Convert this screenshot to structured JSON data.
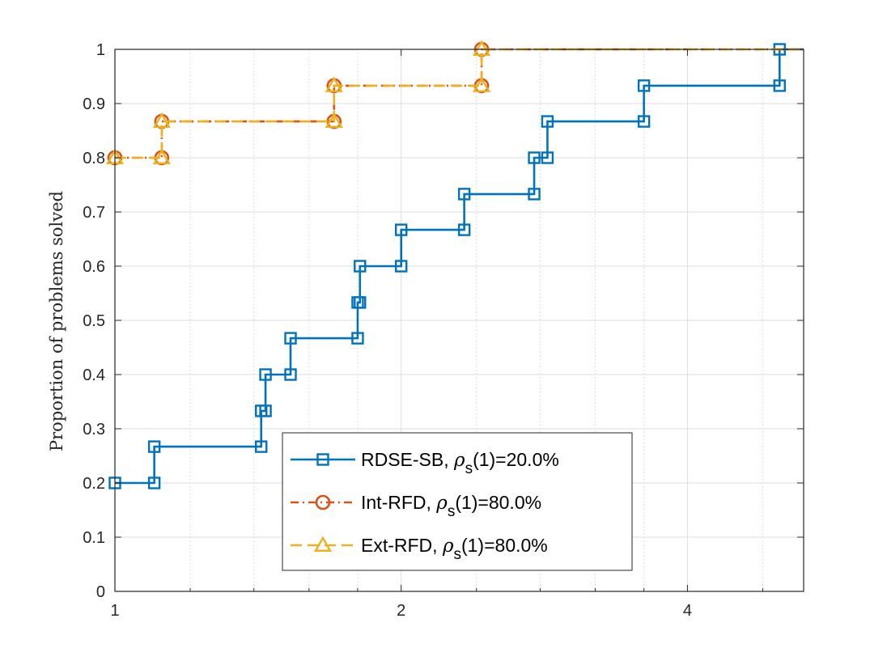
{
  "chart_data": {
    "type": "line",
    "plot_style": "step",
    "title": "",
    "xlabel": "",
    "ylabel": "Proportion of problems solved",
    "xscale": "log2",
    "xlim": [
      1,
      5.3
    ],
    "ylim": [
      0,
      1
    ],
    "xticks": [
      1,
      2,
      4
    ],
    "xtick_labels": [
      "1",
      "2",
      "4"
    ],
    "yticks": [
      0,
      0.1,
      0.2,
      0.3,
      0.4,
      0.5,
      0.6,
      0.7,
      0.8,
      0.9,
      1
    ],
    "ytick_labels": [
      "0",
      "0.1",
      "0.2",
      "0.3",
      "0.4",
      "0.5",
      "0.6",
      "0.7",
      "0.8",
      "0.9",
      "1"
    ],
    "grid": true,
    "legend_position": "bottom-center",
    "series": [
      {
        "name": "RDSE-SB",
        "legend_prefix": "RDSE-SB, ",
        "legend_suffix": "=20.0%",
        "color": "#0072BD",
        "line_style": "solid",
        "marker": "square",
        "x": [
          1.0,
          1.1,
          1.1,
          1.425,
          1.425,
          1.44,
          1.44,
          1.53,
          1.53,
          1.8,
          1.8,
          1.81,
          1.81,
          2.0,
          2.0,
          2.33,
          2.33,
          2.76,
          2.76,
          2.85,
          2.85,
          3.6,
          3.6,
          5.0,
          5.0,
          5.3
        ],
        "y": [
          0.2,
          0.2,
          0.267,
          0.267,
          0.333,
          0.333,
          0.4,
          0.4,
          0.467,
          0.467,
          0.533,
          0.533,
          0.6,
          0.6,
          0.667,
          0.667,
          0.733,
          0.733,
          0.8,
          0.8,
          0.867,
          0.867,
          0.933,
          0.933,
          1.0,
          1.0
        ],
        "marker_x": [
          1.0,
          1.1,
          1.1,
          1.425,
          1.425,
          1.44,
          1.44,
          1.53,
          1.53,
          1.8,
          1.8,
          1.81,
          1.81,
          2.0,
          2.0,
          2.33,
          2.33,
          2.76,
          2.76,
          2.85,
          2.85,
          3.6,
          3.6,
          5.0,
          5.0
        ],
        "marker_y": [
          0.2,
          0.2,
          0.267,
          0.267,
          0.333,
          0.333,
          0.4,
          0.4,
          0.467,
          0.467,
          0.533,
          0.533,
          0.6,
          0.6,
          0.667,
          0.667,
          0.733,
          0.733,
          0.8,
          0.8,
          0.867,
          0.867,
          0.933,
          0.933,
          1.0
        ]
      },
      {
        "name": "Int-RFD",
        "legend_prefix": "Int-RFD, ",
        "legend_suffix": "=80.0%",
        "color": "#D95319",
        "line_style": "dashdot",
        "marker": "circle",
        "x": [
          1.0,
          1.12,
          1.12,
          1.7,
          1.7,
          2.43,
          2.43,
          5.3
        ],
        "y": [
          0.8,
          0.8,
          0.867,
          0.867,
          0.933,
          0.933,
          1.0,
          1.0
        ],
        "marker_x": [
          1.0,
          1.12,
          1.12,
          1.7,
          1.7,
          2.43,
          2.43
        ],
        "marker_y": [
          0.8,
          0.8,
          0.867,
          0.867,
          0.933,
          0.933,
          1.0
        ]
      },
      {
        "name": "Ext-RFD",
        "legend_prefix": "Ext-RFD, ",
        "legend_suffix": "=80.0%",
        "color": "#EDB120",
        "line_style": "dashed",
        "marker": "triangle",
        "x": [
          1.0,
          1.12,
          1.12,
          1.7,
          1.7,
          2.43,
          2.43,
          5.3
        ],
        "y": [
          0.8,
          0.8,
          0.867,
          0.867,
          0.933,
          0.933,
          1.0,
          1.0
        ],
        "marker_x": [
          1.0,
          1.12,
          1.12,
          1.7,
          1.7,
          2.43,
          2.43
        ],
        "marker_y": [
          0.8,
          0.8,
          0.867,
          0.867,
          0.933,
          0.933,
          1.0
        ]
      }
    ],
    "legend_math": {
      "rho": "ρ",
      "sub": "s",
      "arg": "(1)"
    }
  }
}
